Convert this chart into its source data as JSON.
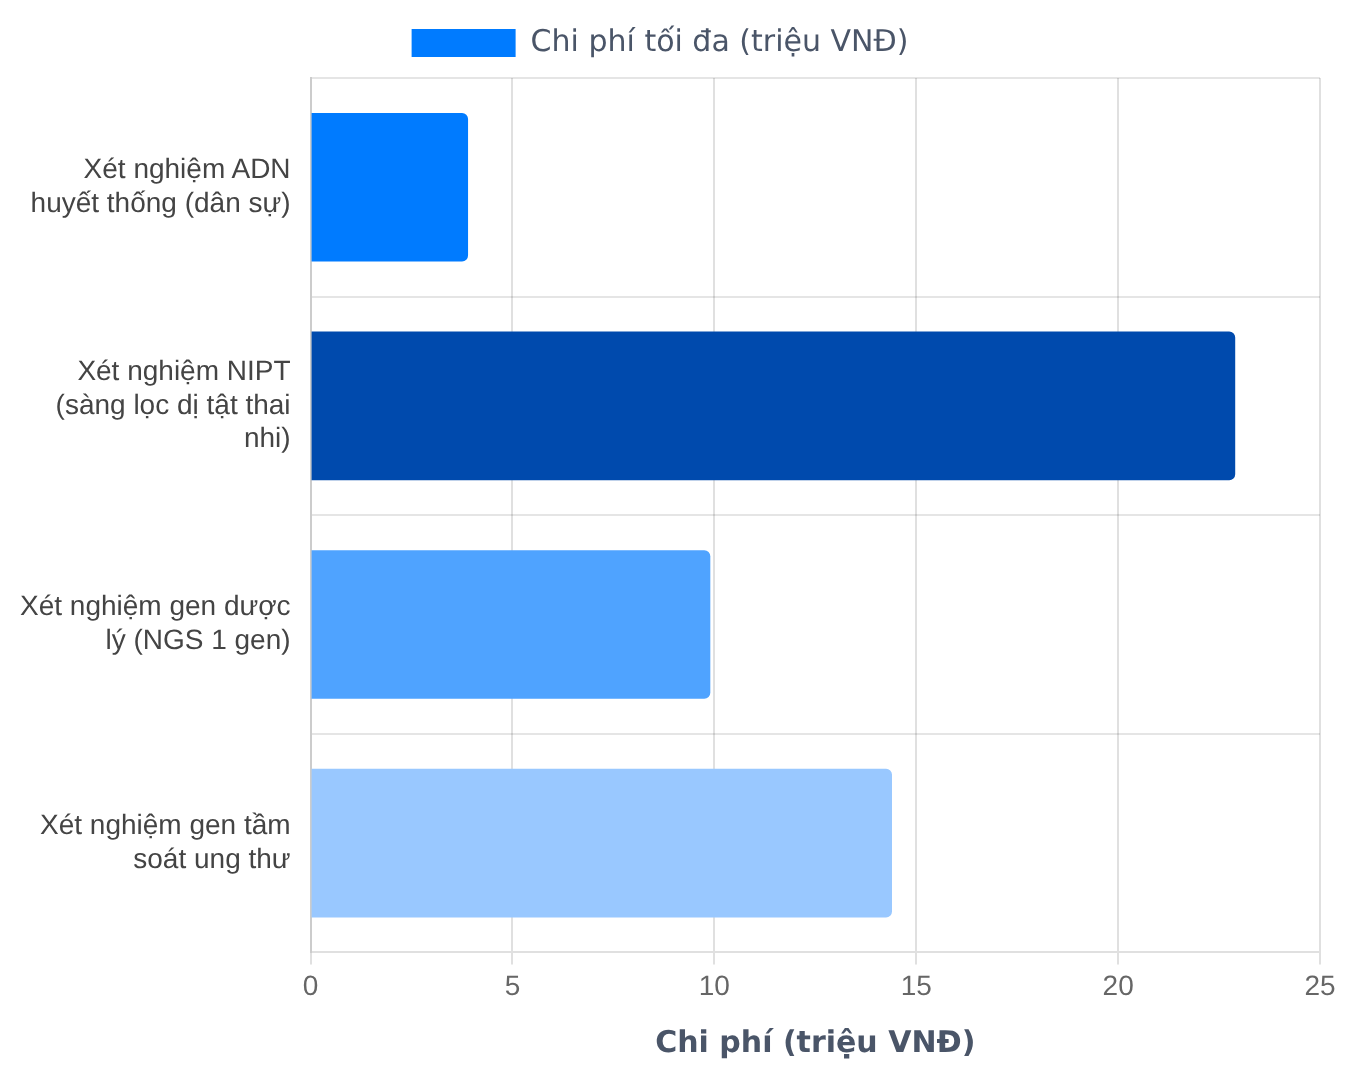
{
  "chart_data": {
    "type": "bar",
    "orientation": "horizontal",
    "xlabel": "Chi phí (triệu VNĐ)",
    "categories": [
      "Xét nghiệm ADN huyết thống (dân sự)",
      "Xét nghiệm NIPT (sàng lọc dị tật thai nhi)",
      "Xét nghiệm gen dược lý (NGS 1 gen)",
      "Xét nghiệm gen tầm soát ung thư"
    ],
    "series": [
      {
        "name": "Chi phí tối đa (triệu VNĐ)",
        "color": "#007bff",
        "colors": [
          "#007bff",
          "#004aad",
          "#4fa3ff",
          "#99c8ff"
        ],
        "values": [
          3.9,
          22.9,
          9.9,
          14.4
        ]
      }
    ],
    "xlim": [
      0,
      25
    ],
    "xticks": [
      0,
      5,
      10,
      15,
      20,
      25
    ],
    "grid": true,
    "legend": "top"
  }
}
